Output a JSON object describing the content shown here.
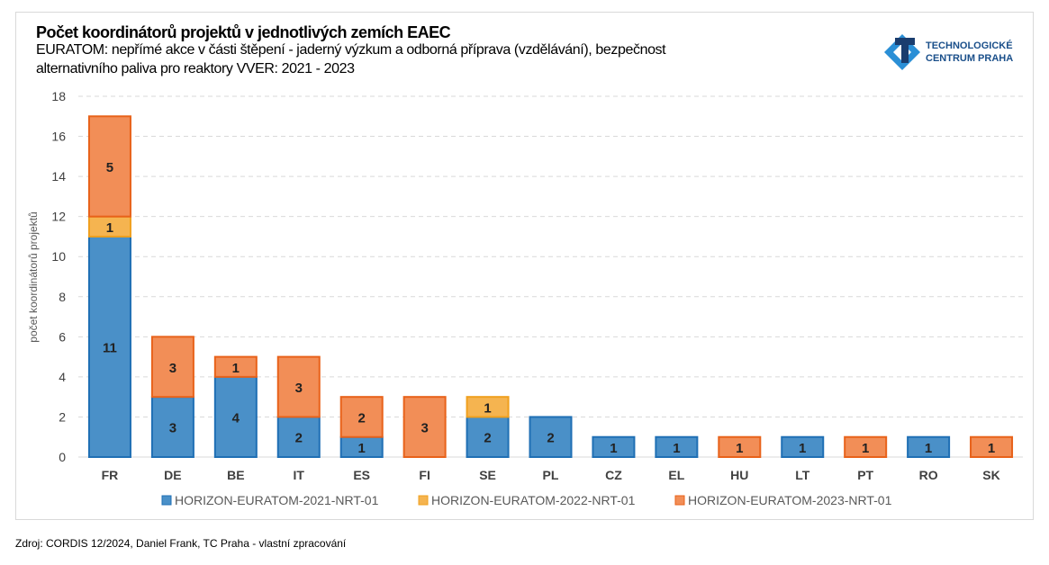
{
  "title": "Počet koordinátorů projektů v jednotlivých zemích EAEC",
  "subtitle_line1": "EURATOM: nepřímé akce v části štěpení  -  jaderný výzkum a odborná příprava (vzdělávání), bezpečnost",
  "subtitle_line2": "alternativního paliva pro reaktory VVER: 2021 - 2023",
  "logo": {
    "line1": "TECHNOLOGICKÉ",
    "line2": "CENTRUM PRAHA"
  },
  "source": "Zdroj: CORDIS 12/2024, Daniel Frank, TC Praha - vlastní zpracování",
  "chart_data": {
    "type": "bar",
    "stacked": true,
    "title": "Počet koordinátorů projektů v jednotlivých zemích EAEC",
    "ylabel": "počet koordinátorů projektů",
    "xlabel": "",
    "ylim": [
      0,
      18
    ],
    "yticks": [
      0,
      2,
      4,
      6,
      8,
      10,
      12,
      14,
      16,
      18
    ],
    "grid": true,
    "legend": "bottom",
    "categories": [
      "FR",
      "DE",
      "BE",
      "IT",
      "ES",
      "FI",
      "SE",
      "PL",
      "CZ",
      "EL",
      "HU",
      "LT",
      "PT",
      "RO",
      "SK"
    ],
    "series": [
      {
        "name": "HORIZON-EURATOM-2021-NRT-01",
        "color": "#4a90c8",
        "stroke": "#1f6fb4",
        "values": [
          11,
          3,
          4,
          2,
          1,
          0,
          2,
          2,
          1,
          1,
          0,
          1,
          0,
          1,
          0
        ]
      },
      {
        "name": "HORIZON-EURATOM-2022-NRT-01",
        "color": "#f5b450",
        "stroke": "#f0a01e",
        "values": [
          1,
          0,
          0,
          0,
          0,
          0,
          1,
          0,
          0,
          0,
          0,
          0,
          0,
          0,
          0
        ]
      },
      {
        "name": "HORIZON-EURATOM-2023-NRT-01",
        "color": "#f28e57",
        "stroke": "#e8621a",
        "values": [
          5,
          3,
          1,
          3,
          2,
          3,
          0,
          0,
          0,
          0,
          1,
          0,
          1,
          0,
          1
        ]
      }
    ]
  }
}
